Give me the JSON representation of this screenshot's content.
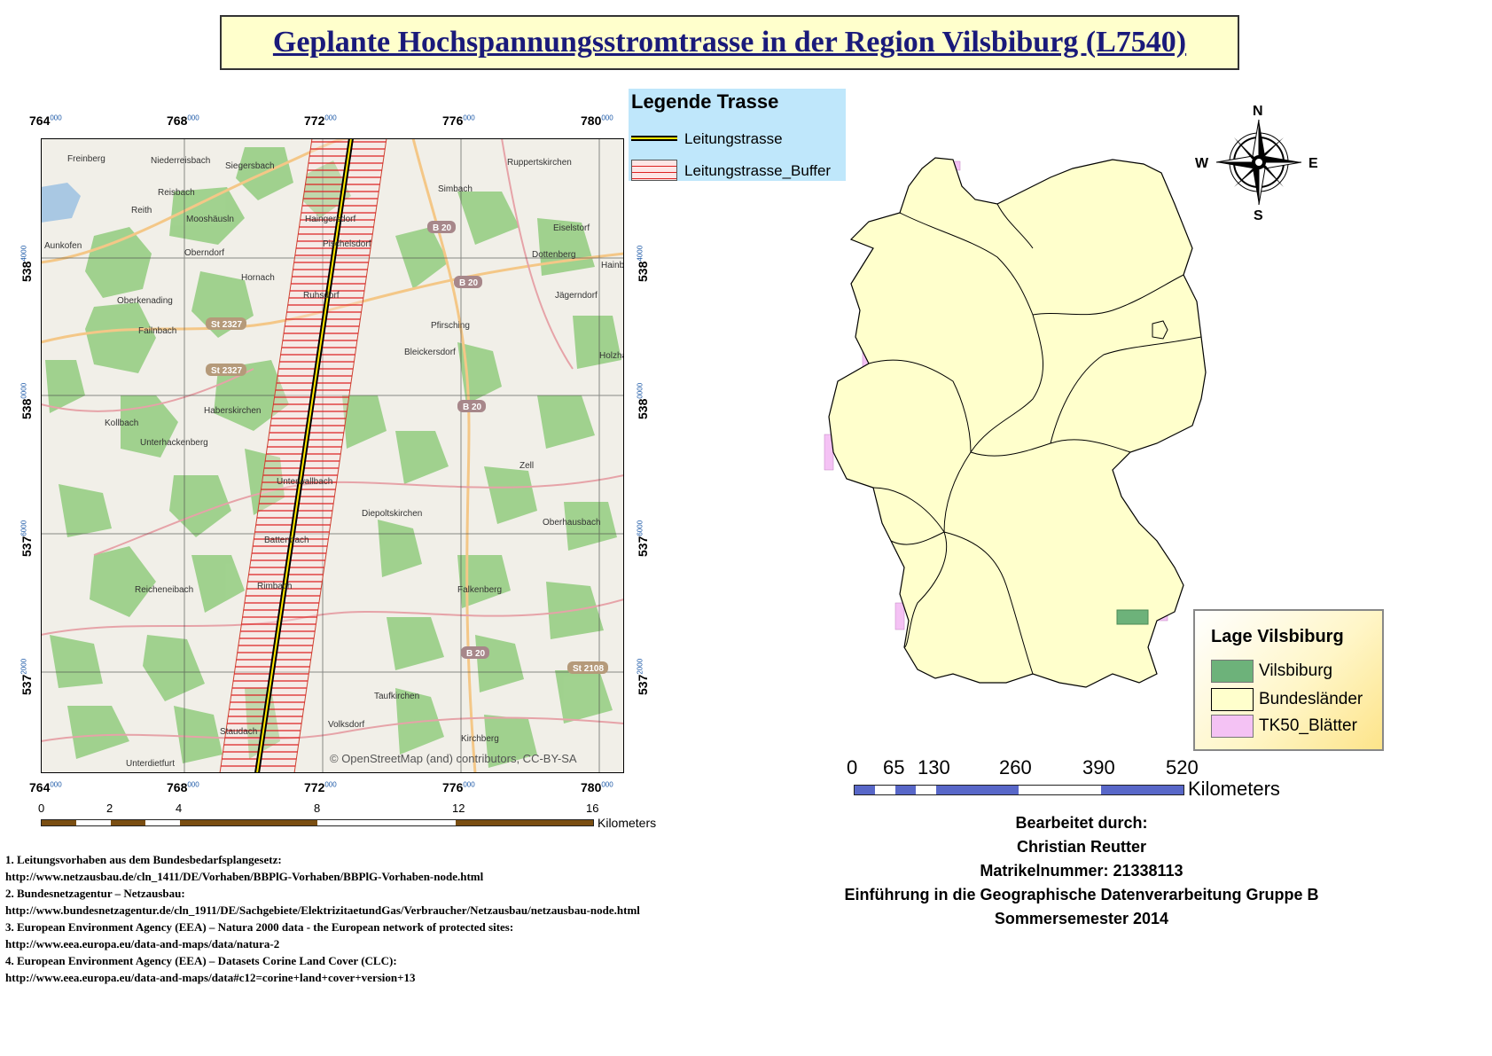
{
  "title": "Geplante Hochspannungsstromtrasse in der Region Vilsbiburg (L7540)",
  "map": {
    "x_ticks": [
      {
        "main": "764",
        "sup": "000"
      },
      {
        "main": "768",
        "sup": "000"
      },
      {
        "main": "772",
        "sup": "000"
      },
      {
        "main": "776",
        "sup": "000"
      },
      {
        "main": "780",
        "sup": "000"
      }
    ],
    "y_ticks": [
      {
        "main": "538",
        "sup": "4000"
      },
      {
        "main": "538",
        "sup": "0000"
      },
      {
        "main": "537",
        "sup": "6000"
      },
      {
        "main": "537",
        "sup": "2000"
      }
    ],
    "places": [
      "Freinberg",
      "Niederreisbach",
      "Siegersbach",
      "Ruppertskirchen",
      "Reisbach",
      "Simbach",
      "Reith",
      "Mooshäusln",
      "Haingersdorf",
      "Aunkofen",
      "Oberndorf",
      "Eiselstorf",
      "Dottenberg",
      "Hainb",
      "Hornach",
      "Pischelsdorf",
      "Jägerndorf",
      "Oberkenading",
      "Ruhsdorf",
      "Pfirsching",
      "Failnbach",
      "Bleickersdorf",
      "Holzha",
      "Haberskirchen",
      "Kollbach",
      "Unterhackenberg",
      "Zell",
      "Unterwallbach",
      "Diepoltskirchen",
      "Oberhausbach",
      "Battenbach",
      "Reicheneibach",
      "Falkenberg",
      "Rimbach",
      "Taufkirchen",
      "Volksdorf",
      "Staudach",
      "Kirchberg",
      "Unterdietfurt"
    ],
    "roads": [
      "B 20",
      "B 20",
      "St 2327",
      "St 2327",
      "B 20",
      "B 20",
      "St 2108"
    ],
    "attribution": "© OpenStreetMap (and) contributors, CC-BY-SA"
  },
  "legend_trasse": {
    "title": "Legende Trasse",
    "items": [
      "Leitungstrasse",
      "Leitungstrasse_Buffer"
    ]
  },
  "scale_map": {
    "labels": [
      "0",
      "2",
      "4",
      "8",
      "12",
      "16"
    ],
    "unit": "Kilometers"
  },
  "compass": {
    "n": "N",
    "s": "S",
    "w": "W",
    "e": "E"
  },
  "legend_lage": {
    "title": "Lage Vilsbiburg",
    "items": [
      "Vilsbiburg",
      "Bundesländer",
      "TK50_Blätter"
    ],
    "colors": [
      "#6db27a",
      "#ffffcc",
      "#f4c2f4"
    ]
  },
  "scale_de": {
    "labels": [
      "0",
      "65",
      "130",
      "260",
      "390",
      "520"
    ],
    "unit": "Kilometers"
  },
  "credits": [
    "Bearbeitet durch:",
    "Christian Reutter",
    "Matrikelnummer: 21338113",
    "Einführung in die Geographische Datenverarbeitung Gruppe B",
    "Sommersemester 2014"
  ],
  "sources": [
    "1. Leitungsvorhaben aus dem Bundesbedarfsplangesetz:",
    "http://www.netzausbau.de/cln_1411/DE/Vorhaben/BBPlG-Vorhaben/BBPlG-Vorhaben-node.html",
    "2. Bundesnetzagentur – Netzausbau:",
    "http://www.bundesnetzagentur.de/cln_1911/DE/Sachgebiete/ElektrizitaetundGas/Verbraucher/Netzausbau/netzausbau-node.html",
    "3. European Environment Agency (EEA) – Natura 2000 data - the European network of protected sites:",
    "http://www.eea.europa.eu/data-and-maps/data/natura-2",
    "4. European Environment Agency (EEA) – Datasets Corine Land Cover (CLC):",
    "http://www.eea.europa.eu/data-and-maps/data#c12=corine+land+cover+version+13"
  ]
}
